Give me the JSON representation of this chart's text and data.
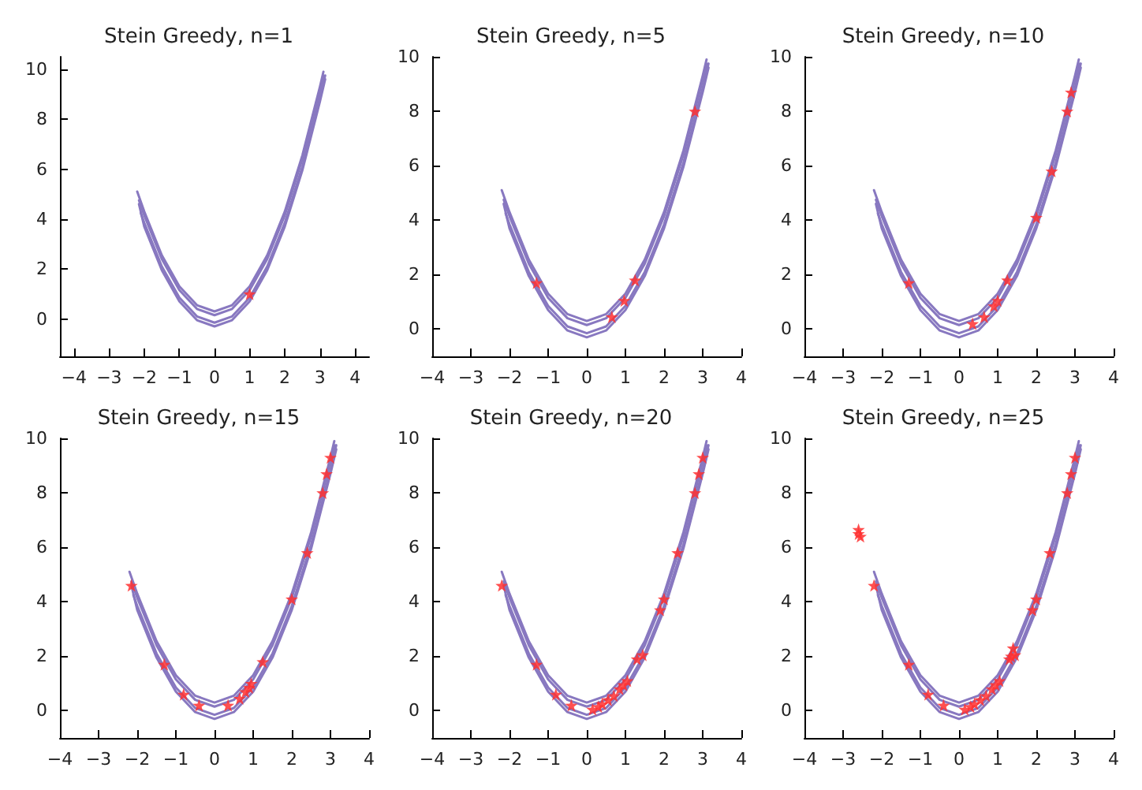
{
  "chart_data": [
    {
      "type": "scatter",
      "title": "Stein Greedy, n=1",
      "xlim": [
        -4.4,
        4.4
      ],
      "xticks": [
        -4,
        -3,
        -2,
        -1,
        0,
        1,
        2,
        3,
        4
      ],
      "ylim": [
        -1.5,
        10.5
      ],
      "yticks": [
        0,
        2,
        4,
        6,
        8,
        10
      ],
      "grid": false,
      "marker": "star",
      "series": [
        {
          "type": "line",
          "color": "#8878c0",
          "marker": "none",
          "x": [
            -2.2,
            -2,
            -1.5,
            -1,
            -0.5,
            0,
            0.5,
            1,
            1.5,
            2,
            2.5,
            3,
            3.1
          ],
          "values": [
            5.1,
            4.3,
            2.55,
            1.3,
            0.55,
            0.3,
            0.55,
            1.3,
            2.55,
            4.3,
            6.55,
            9.3,
            9.9
          ]
        },
        {
          "type": "line",
          "color": "#8878c0",
          "marker": "none",
          "x": [
            -2.15,
            -2,
            -1.5,
            -1,
            -0.5,
            0,
            0.5,
            1,
            1.5,
            2,
            2.5,
            3,
            3.15
          ],
          "values": [
            4.6,
            3.7,
            1.95,
            0.7,
            -0.05,
            -0.3,
            -0.05,
            0.7,
            1.95,
            3.7,
            5.95,
            8.7,
            9.6
          ]
        },
        {
          "type": "line",
          "color": "#8878c0",
          "marker": "none",
          "x": [
            -2.15,
            -2,
            -1.5,
            -1,
            -0.5,
            0,
            0.5,
            1,
            1.5,
            2,
            2.5,
            3,
            3.1
          ],
          "values": [
            4.75,
            4.15,
            2.4,
            1.15,
            0.4,
            0.15,
            0.4,
            1.15,
            2.4,
            4.15,
            6.4,
            9.15,
            9.75
          ]
        },
        {
          "type": "line",
          "color": "#8878c0",
          "marker": "none",
          "x": [
            -2.1,
            -2,
            -1.5,
            -1,
            -0.5,
            0,
            0.5,
            1,
            1.5,
            2,
            2.5,
            3,
            3.15
          ],
          "values": [
            4.25,
            3.85,
            2.1,
            0.85,
            0.1,
            -0.15,
            0.1,
            0.85,
            2.1,
            3.85,
            6.1,
            8.85,
            9.75
          ]
        },
        {
          "color": "#ff3030",
          "x": [
            1.0
          ],
          "values": [
            1.0
          ]
        }
      ]
    },
    {
      "type": "scatter",
      "title": "Stein Greedy, n=5",
      "xlim": [
        -4,
        4
      ],
      "xticks": [
        -4,
        -3,
        -2,
        -1,
        0,
        1,
        2,
        3,
        4
      ],
      "ylim": [
        -1,
        10
      ],
      "yticks": [
        0,
        2,
        4,
        6,
        8,
        10
      ],
      "grid": false,
      "marker": "star",
      "series": [
        {
          "type": "line",
          "color": "#8878c0",
          "marker": "none",
          "x": [
            -2.2,
            -2,
            -1.5,
            -1,
            -0.5,
            0,
            0.5,
            1,
            1.5,
            2,
            2.5,
            3,
            3.1
          ],
          "values": [
            5.1,
            4.3,
            2.55,
            1.3,
            0.55,
            0.3,
            0.55,
            1.3,
            2.55,
            4.3,
            6.55,
            9.3,
            9.9
          ]
        },
        {
          "type": "line",
          "color": "#8878c0",
          "marker": "none",
          "x": [
            -2.15,
            -2,
            -1.5,
            -1,
            -0.5,
            0,
            0.5,
            1,
            1.5,
            2,
            2.5,
            3,
            3.15
          ],
          "values": [
            4.6,
            3.7,
            1.95,
            0.7,
            -0.05,
            -0.3,
            -0.05,
            0.7,
            1.95,
            3.7,
            5.95,
            8.7,
            9.6
          ]
        },
        {
          "type": "line",
          "color": "#8878c0",
          "marker": "none",
          "x": [
            -2.15,
            -2,
            -1.5,
            -1,
            -0.5,
            0,
            0.5,
            1,
            1.5,
            2,
            2.5,
            3,
            3.1
          ],
          "values": [
            4.75,
            4.15,
            2.4,
            1.15,
            0.4,
            0.15,
            0.4,
            1.15,
            2.4,
            4.15,
            6.4,
            9.15,
            9.75
          ]
        },
        {
          "type": "line",
          "color": "#8878c0",
          "marker": "none",
          "x": [
            -2.1,
            -2,
            -1.5,
            -1,
            -0.5,
            0,
            0.5,
            1,
            1.5,
            2,
            2.5,
            3,
            3.15
          ],
          "values": [
            4.25,
            3.85,
            2.1,
            0.85,
            0.1,
            -0.15,
            0.1,
            0.85,
            2.1,
            3.85,
            6.1,
            8.85,
            9.75
          ]
        },
        {
          "color": "#ff3030",
          "x": [
            -1.3,
            0.65,
            0.97,
            1.25,
            2.8
          ],
          "values": [
            1.7,
            0.45,
            1.05,
            1.8,
            8.0
          ]
        }
      ]
    },
    {
      "type": "scatter",
      "title": "Stein Greedy, n=10",
      "xlim": [
        -4,
        4
      ],
      "xticks": [
        -4,
        -3,
        -2,
        -1,
        0,
        1,
        2,
        3,
        4
      ],
      "ylim": [
        -1,
        10
      ],
      "yticks": [
        0,
        2,
        4,
        6,
        8,
        10
      ],
      "grid": false,
      "marker": "star",
      "series": [
        {
          "type": "line",
          "color": "#8878c0",
          "marker": "none",
          "x": [
            -2.2,
            -2,
            -1.5,
            -1,
            -0.5,
            0,
            0.5,
            1,
            1.5,
            2,
            2.5,
            3,
            3.1
          ],
          "values": [
            5.1,
            4.3,
            2.55,
            1.3,
            0.55,
            0.3,
            0.55,
            1.3,
            2.55,
            4.3,
            6.55,
            9.3,
            9.9
          ]
        },
        {
          "type": "line",
          "color": "#8878c0",
          "marker": "none",
          "x": [
            -2.15,
            -2,
            -1.5,
            -1,
            -0.5,
            0,
            0.5,
            1,
            1.5,
            2,
            2.5,
            3,
            3.15
          ],
          "values": [
            4.6,
            3.7,
            1.95,
            0.7,
            -0.05,
            -0.3,
            -0.05,
            0.7,
            1.95,
            3.7,
            5.95,
            8.7,
            9.6
          ]
        },
        {
          "type": "line",
          "color": "#8878c0",
          "marker": "none",
          "x": [
            -2.15,
            -2,
            -1.5,
            -1,
            -0.5,
            0,
            0.5,
            1,
            1.5,
            2,
            2.5,
            3,
            3.1
          ],
          "values": [
            4.75,
            4.15,
            2.4,
            1.15,
            0.4,
            0.15,
            0.4,
            1.15,
            2.4,
            4.15,
            6.4,
            9.15,
            9.75
          ]
        },
        {
          "type": "line",
          "color": "#8878c0",
          "marker": "none",
          "x": [
            -2.1,
            -2,
            -1.5,
            -1,
            -0.5,
            0,
            0.5,
            1,
            1.5,
            2,
            2.5,
            3,
            3.15
          ],
          "values": [
            4.25,
            3.85,
            2.1,
            0.85,
            0.1,
            -0.15,
            0.1,
            0.85,
            2.1,
            3.85,
            6.1,
            8.85,
            9.75
          ]
        },
        {
          "color": "#ff3030",
          "x": [
            -1.3,
            0.35,
            0.65,
            0.9,
            1.0,
            1.25,
            2.0,
            2.4,
            2.8,
            2.9
          ],
          "values": [
            1.7,
            0.2,
            0.45,
            0.85,
            1.05,
            1.8,
            4.1,
            5.8,
            8.0,
            8.7
          ]
        }
      ]
    },
    {
      "type": "scatter",
      "title": "Stein Greedy, n=15",
      "xlim": [
        -4,
        4
      ],
      "xticks": [
        -4,
        -3,
        -2,
        -1,
        0,
        1,
        2,
        3,
        4
      ],
      "ylim": [
        -1,
        10
      ],
      "yticks": [
        0,
        2,
        4,
        6,
        8,
        10
      ],
      "grid": false,
      "marker": "star",
      "series": [
        {
          "type": "line",
          "color": "#8878c0",
          "marker": "none",
          "x": [
            -2.2,
            -2,
            -1.5,
            -1,
            -0.5,
            0,
            0.5,
            1,
            1.5,
            2,
            2.5,
            3,
            3.1
          ],
          "values": [
            5.1,
            4.3,
            2.55,
            1.3,
            0.55,
            0.3,
            0.55,
            1.3,
            2.55,
            4.3,
            6.55,
            9.3,
            9.9
          ]
        },
        {
          "type": "line",
          "color": "#8878c0",
          "marker": "none",
          "x": [
            -2.15,
            -2,
            -1.5,
            -1,
            -0.5,
            0,
            0.5,
            1,
            1.5,
            2,
            2.5,
            3,
            3.15
          ],
          "values": [
            4.6,
            3.7,
            1.95,
            0.7,
            -0.05,
            -0.3,
            -0.05,
            0.7,
            1.95,
            3.7,
            5.95,
            8.7,
            9.6
          ]
        },
        {
          "type": "line",
          "color": "#8878c0",
          "marker": "none",
          "x": [
            -2.15,
            -2,
            -1.5,
            -1,
            -0.5,
            0,
            0.5,
            1,
            1.5,
            2,
            2.5,
            3,
            3.1
          ],
          "values": [
            4.75,
            4.15,
            2.4,
            1.15,
            0.4,
            0.15,
            0.4,
            1.15,
            2.4,
            4.15,
            6.4,
            9.15,
            9.75
          ]
        },
        {
          "type": "line",
          "color": "#8878c0",
          "marker": "none",
          "x": [
            -2.1,
            -2,
            -1.5,
            -1,
            -0.5,
            0,
            0.5,
            1,
            1.5,
            2,
            2.5,
            3,
            3.15
          ],
          "values": [
            4.25,
            3.85,
            2.1,
            0.85,
            0.1,
            -0.15,
            0.1,
            0.85,
            2.1,
            3.85,
            6.1,
            8.85,
            9.75
          ]
        },
        {
          "color": "#ff3030",
          "x": [
            -2.15,
            -1.3,
            -0.8,
            -0.4,
            0.35,
            0.65,
            0.8,
            0.9,
            0.95,
            1.25,
            2.0,
            2.4,
            2.8,
            2.9,
            3.0
          ],
          "values": [
            4.6,
            1.7,
            0.6,
            0.2,
            0.2,
            0.45,
            0.7,
            0.85,
            1.0,
            1.8,
            4.1,
            5.8,
            8.0,
            8.7,
            9.3
          ]
        }
      ]
    },
    {
      "type": "scatter",
      "title": "Stein Greedy, n=20",
      "xlim": [
        -4,
        4
      ],
      "xticks": [
        -4,
        -3,
        -2,
        -1,
        0,
        1,
        2,
        3,
        4
      ],
      "ylim": [
        -1,
        10
      ],
      "yticks": [
        0,
        2,
        4,
        6,
        8,
        10
      ],
      "grid": false,
      "marker": "star",
      "series": [
        {
          "type": "line",
          "color": "#8878c0",
          "marker": "none",
          "x": [
            -2.2,
            -2,
            -1.5,
            -1,
            -0.5,
            0,
            0.5,
            1,
            1.5,
            2,
            2.5,
            3,
            3.1
          ],
          "values": [
            5.1,
            4.3,
            2.55,
            1.3,
            0.55,
            0.3,
            0.55,
            1.3,
            2.55,
            4.3,
            6.55,
            9.3,
            9.9
          ]
        },
        {
          "type": "line",
          "color": "#8878c0",
          "marker": "none",
          "x": [
            -2.15,
            -2,
            -1.5,
            -1,
            -0.5,
            0,
            0.5,
            1,
            1.5,
            2,
            2.5,
            3,
            3.15
          ],
          "values": [
            4.6,
            3.7,
            1.95,
            0.7,
            -0.05,
            -0.3,
            -0.05,
            0.7,
            1.95,
            3.7,
            5.95,
            8.7,
            9.6
          ]
        },
        {
          "type": "line",
          "color": "#8878c0",
          "marker": "none",
          "x": [
            -2.15,
            -2,
            -1.5,
            -1,
            -0.5,
            0,
            0.5,
            1,
            1.5,
            2,
            2.5,
            3,
            3.1
          ],
          "values": [
            4.75,
            4.15,
            2.4,
            1.15,
            0.4,
            0.15,
            0.4,
            1.15,
            2.4,
            4.15,
            6.4,
            9.15,
            9.75
          ]
        },
        {
          "type": "line",
          "color": "#8878c0",
          "marker": "none",
          "x": [
            -2.1,
            -2,
            -1.5,
            -1,
            -0.5,
            0,
            0.5,
            1,
            1.5,
            2,
            2.5,
            3,
            3.15
          ],
          "values": [
            4.25,
            3.85,
            2.1,
            0.85,
            0.1,
            -0.15,
            0.1,
            0.85,
            2.1,
            3.85,
            6.1,
            8.85,
            9.75
          ]
        },
        {
          "color": "#ff3030",
          "x": [
            -2.2,
            -1.3,
            -0.8,
            -0.4,
            0.15,
            0.4,
            0.55,
            0.7,
            0.85,
            0.95,
            1.3,
            1.45,
            1.9,
            2.0,
            2.35,
            2.8,
            2.9,
            3.0,
            0.3,
            1.05
          ],
          "values": [
            4.6,
            1.7,
            0.6,
            0.2,
            0.05,
            0.25,
            0.4,
            0.55,
            0.8,
            0.95,
            1.9,
            2.05,
            3.7,
            4.1,
            5.8,
            8.0,
            8.7,
            9.3,
            0.15,
            1.1
          ]
        }
      ]
    },
    {
      "type": "scatter",
      "title": "Stein Greedy, n=25",
      "xlim": [
        -4,
        4
      ],
      "xticks": [
        -4,
        -3,
        -2,
        -1,
        0,
        1,
        2,
        3,
        4
      ],
      "ylim": [
        -1,
        10
      ],
      "yticks": [
        0,
        2,
        4,
        6,
        8,
        10
      ],
      "grid": false,
      "marker": "star",
      "series": [
        {
          "type": "line",
          "color": "#8878c0",
          "marker": "none",
          "x": [
            -2.2,
            -2,
            -1.5,
            -1,
            -0.5,
            0,
            0.5,
            1,
            1.5,
            2,
            2.5,
            3,
            3.1
          ],
          "values": [
            5.1,
            4.3,
            2.55,
            1.3,
            0.55,
            0.3,
            0.55,
            1.3,
            2.55,
            4.3,
            6.55,
            9.3,
            9.9
          ]
        },
        {
          "type": "line",
          "color": "#8878c0",
          "marker": "none",
          "x": [
            -2.15,
            -2,
            -1.5,
            -1,
            -0.5,
            0,
            0.5,
            1,
            1.5,
            2,
            2.5,
            3,
            3.15
          ],
          "values": [
            4.6,
            3.7,
            1.95,
            0.7,
            -0.05,
            -0.3,
            -0.05,
            0.7,
            1.95,
            3.7,
            5.95,
            8.7,
            9.6
          ]
        },
        {
          "type": "line",
          "color": "#8878c0",
          "marker": "none",
          "x": [
            -2.15,
            -2,
            -1.5,
            -1,
            -0.5,
            0,
            0.5,
            1,
            1.5,
            2,
            2.5,
            3,
            3.1
          ],
          "values": [
            4.75,
            4.15,
            2.4,
            1.15,
            0.4,
            0.15,
            0.4,
            1.15,
            2.4,
            4.15,
            6.4,
            9.15,
            9.75
          ]
        },
        {
          "type": "line",
          "color": "#8878c0",
          "marker": "none",
          "x": [
            -2.1,
            -2,
            -1.5,
            -1,
            -0.5,
            0,
            0.5,
            1,
            1.5,
            2,
            2.5,
            3,
            3.15
          ],
          "values": [
            4.25,
            3.85,
            2.1,
            0.85,
            0.1,
            -0.15,
            0.1,
            0.85,
            2.1,
            3.85,
            6.1,
            8.85,
            9.75
          ]
        },
        {
          "color": "#ff3030",
          "x": [
            -2.6,
            -2.55,
            -2.6,
            -2.2,
            -1.3,
            -0.8,
            -0.4,
            0.15,
            0.3,
            0.4,
            0.55,
            0.7,
            0.85,
            0.95,
            1.05,
            1.3,
            1.4,
            1.45,
            1.9,
            2.0,
            2.35,
            2.8,
            2.9,
            3.0,
            1.35
          ],
          "values": [
            6.65,
            6.4,
            6.5,
            4.6,
            1.7,
            0.6,
            0.2,
            0.05,
            0.15,
            0.25,
            0.4,
            0.55,
            0.8,
            0.95,
            1.1,
            1.9,
            2.3,
            2.05,
            3.7,
            4.1,
            5.8,
            8.0,
            8.7,
            9.3,
            2.0
          ]
        }
      ]
    }
  ]
}
